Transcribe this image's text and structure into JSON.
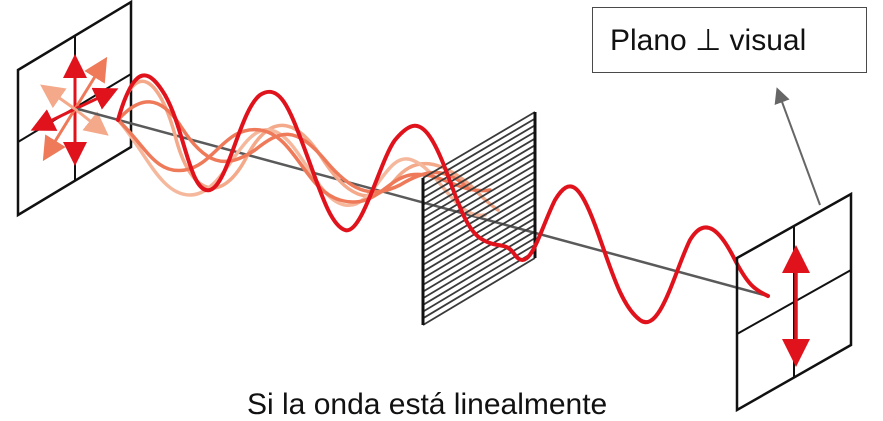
{
  "label_box": {
    "text": "Plano ⊥ visual"
  },
  "caption": {
    "text": "Si la onda está linealmente"
  },
  "colors": {
    "wave_main": "#e0131d",
    "wave_light": "#f3a98a",
    "wave_mid": "#ee7a5a",
    "axis": "#5a5a5a",
    "frame": "#111111",
    "polarizer": "#3a3a3a"
  }
}
